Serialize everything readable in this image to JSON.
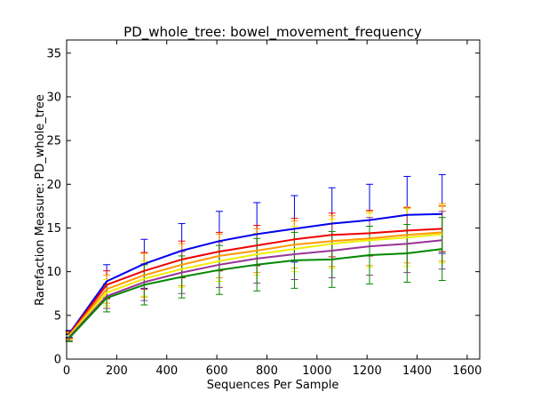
{
  "chart_data": {
    "type": "line",
    "title": "PD_whole_tree: bowel_movement_frequency",
    "xlabel": "Sequences Per Sample",
    "ylabel": "Rarefaction Measure: PD_whole_tree",
    "xlim": [
      0,
      1650
    ],
    "ylim": [
      0,
      36.5
    ],
    "xticks": [
      0,
      200,
      400,
      600,
      800,
      1000,
      1200,
      1400,
      1600
    ],
    "yticks": [
      0,
      5,
      10,
      15,
      20,
      25,
      30,
      35
    ],
    "grid": false,
    "legend": "none",
    "x": [
      10,
      160,
      310,
      460,
      610,
      760,
      910,
      1060,
      1210,
      1360,
      1500
    ],
    "series": [
      {
        "color": "#0000ee",
        "values": [
          2.9,
          8.9,
          10.9,
          12.4,
          13.5,
          14.3,
          14.9,
          15.5,
          15.9,
          16.5,
          16.6
        ],
        "errors": [
          0.4,
          1.9,
          2.8,
          3.1,
          3.4,
          3.6,
          3.8,
          4.1,
          4.1,
          4.4,
          4.5
        ]
      },
      {
        "color": "#ee0000",
        "values": [
          2.8,
          8.5,
          10.1,
          11.4,
          12.3,
          13.0,
          13.7,
          14.2,
          14.4,
          14.7,
          14.9
        ],
        "errors": [
          0.4,
          1.6,
          2.1,
          2.1,
          2.2,
          2.3,
          2.4,
          2.5,
          2.6,
          2.6,
          2.6
        ]
      },
      {
        "color": "#ff9900",
        "values": [
          2.7,
          8.0,
          9.6,
          10.8,
          11.8,
          12.4,
          13.1,
          13.5,
          13.8,
          14.2,
          14.5
        ],
        "errors": [
          0.4,
          1.6,
          2.5,
          2.4,
          2.5,
          2.5,
          2.7,
          2.9,
          3.1,
          3.2,
          3.3
        ]
      },
      {
        "color": "#eeee00",
        "values": [
          2.6,
          7.6,
          9.2,
          10.3,
          11.2,
          12.0,
          12.6,
          13.2,
          13.6,
          13.9,
          14.3
        ],
        "errors": [
          0.4,
          1.5,
          2.0,
          2.1,
          2.3,
          2.4,
          2.6,
          2.8,
          3.1,
          3.3,
          3.3
        ]
      },
      {
        "color": "#993399",
        "values": [
          2.5,
          7.2,
          8.8,
          9.9,
          10.8,
          11.5,
          12.0,
          12.4,
          12.9,
          13.2,
          13.6
        ],
        "errors": [
          0.4,
          1.4,
          2.1,
          2.4,
          2.6,
          2.8,
          2.9,
          3.1,
          3.3,
          3.3,
          3.3
        ]
      },
      {
        "color": "#008800",
        "values": [
          2.4,
          7.0,
          8.5,
          9.4,
          10.2,
          10.8,
          11.3,
          11.4,
          11.9,
          12.1,
          12.6
        ],
        "errors": [
          0.4,
          1.6,
          2.3,
          2.4,
          2.8,
          3.0,
          3.2,
          3.2,
          3.3,
          3.3,
          3.6
        ]
      }
    ]
  }
}
